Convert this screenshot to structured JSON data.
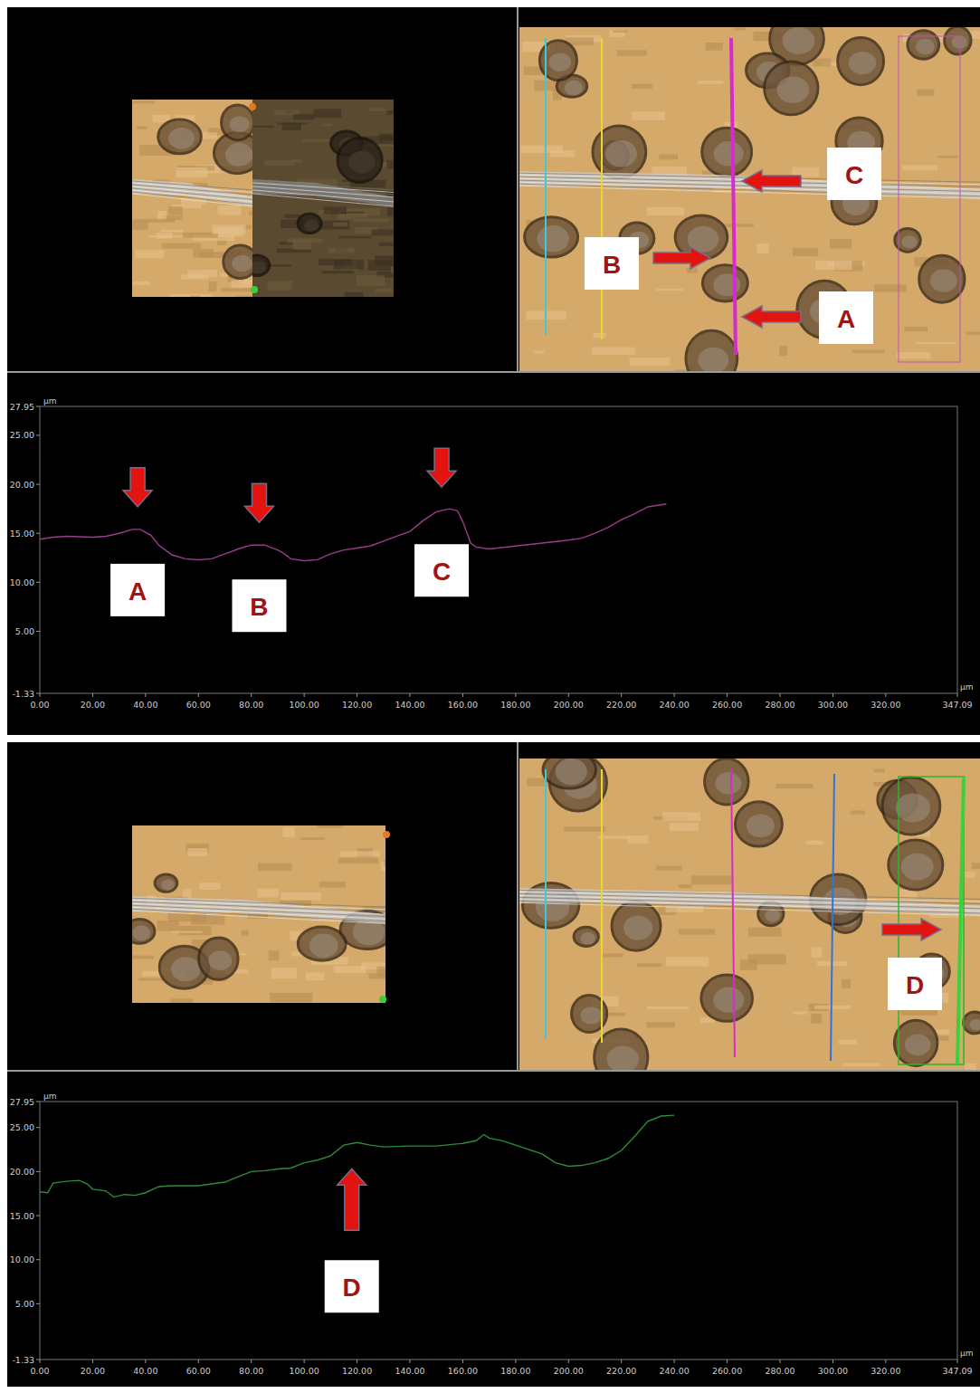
{
  "chart_data": [
    {
      "type": "line",
      "y_label": "µm",
      "x_label": "µm",
      "xlim": [
        0,
        347.09
      ],
      "ylim": [
        -1.33,
        27.95
      ],
      "xticks": [
        {
          "value": 0,
          "label": "0.00"
        },
        {
          "value": 20,
          "label": "20.00"
        },
        {
          "value": 40,
          "label": "40.00"
        },
        {
          "value": 60,
          "label": "60.00"
        },
        {
          "value": 80,
          "label": "80.00"
        },
        {
          "value": 100,
          "label": "100.00"
        },
        {
          "value": 120,
          "label": "120.00"
        },
        {
          "value": 140,
          "label": "140.00"
        },
        {
          "value": 160,
          "label": "160.00"
        },
        {
          "value": 180,
          "label": "180.00"
        },
        {
          "value": 200,
          "label": "200.00"
        },
        {
          "value": 220,
          "label": "220.00"
        },
        {
          "value": 240,
          "label": "240.00"
        },
        {
          "value": 260,
          "label": "260.00"
        },
        {
          "value": 280,
          "label": "280.00"
        },
        {
          "value": 300,
          "label": "300.00"
        },
        {
          "value": 320,
          "label": "320.00"
        },
        347.09
      ],
      "yticks": [
        -1.33,
        {
          "value": 5,
          "label": "5.00"
        },
        {
          "value": 10,
          "label": "10.00"
        },
        {
          "value": 15,
          "label": "15.00"
        },
        {
          "value": 20,
          "label": "20.00"
        },
        {
          "value": 25,
          "label": "25.00"
        },
        27.95
      ],
      "x": [
        0,
        5,
        10,
        20,
        25,
        30,
        35,
        38,
        42,
        45,
        50,
        55,
        60,
        65,
        70,
        75,
        80,
        85,
        90,
        92,
        95,
        100,
        105,
        110,
        115,
        120,
        125,
        130,
        135,
        140,
        145,
        150,
        155,
        158,
        160,
        163,
        165,
        170,
        180,
        190,
        200,
        205,
        210,
        215,
        220,
        225,
        230,
        237
      ],
      "series": [
        {
          "color": "#9a3c8c",
          "values": [
            14.4,
            14.6,
            14.7,
            14.6,
            14.7,
            15.0,
            15.4,
            15.4,
            14.8,
            13.8,
            12.8,
            12.4,
            12.3,
            12.4,
            12.9,
            13.4,
            13.8,
            13.8,
            13.3,
            13.0,
            12.4,
            12.2,
            12.3,
            12.9,
            13.3,
            13.5,
            13.7,
            14.2,
            14.7,
            15.2,
            16.3,
            17.2,
            17.5,
            17.3,
            16.2,
            14.0,
            13.6,
            13.4,
            13.7,
            14.0,
            14.3,
            14.5,
            15.0,
            15.6,
            16.4,
            17.0,
            17.7,
            18.0
          ]
        }
      ],
      "annotations": [
        {
          "text": "A",
          "x": 37,
          "y": 15.4
        },
        {
          "text": "B",
          "x": 83,
          "y": 13.8
        },
        {
          "text": "C",
          "x": 152,
          "y": 17.4
        }
      ]
    },
    {
      "type": "line",
      "y_label": "µm",
      "x_label": "µm",
      "xlim": [
        0,
        347.09
      ],
      "ylim": [
        -1.33,
        27.95
      ],
      "xticks": [
        {
          "value": 0,
          "label": "0.00"
        },
        {
          "value": 20,
          "label": "20.00"
        },
        {
          "value": 40,
          "label": "40.00"
        },
        {
          "value": 60,
          "label": "60.00"
        },
        {
          "value": 80,
          "label": "80.00"
        },
        {
          "value": 100,
          "label": "100.00"
        },
        {
          "value": 120,
          "label": "120.00"
        },
        {
          "value": 140,
          "label": "140.00"
        },
        {
          "value": 160,
          "label": "160.00"
        },
        {
          "value": 180,
          "label": "180.00"
        },
        {
          "value": 200,
          "label": "200.00"
        },
        {
          "value": 220,
          "label": "220.00"
        },
        {
          "value": 240,
          "label": "240.00"
        },
        {
          "value": 260,
          "label": "260.00"
        },
        {
          "value": 280,
          "label": "280.00"
        },
        {
          "value": 300,
          "label": "300.00"
        },
        {
          "value": 320,
          "label": "320.00"
        },
        347.09
      ],
      "yticks": [
        -1.33,
        {
          "value": 5,
          "label": "5.00"
        },
        {
          "value": 10,
          "label": "10.00"
        },
        {
          "value": 15,
          "label": "15.00"
        },
        {
          "value": 20,
          "label": "20.00"
        },
        {
          "value": 25,
          "label": "25.00"
        },
        27.95
      ],
      "x": [
        0,
        3,
        5,
        10,
        15,
        18,
        20,
        25,
        28,
        32,
        36,
        40,
        45,
        50,
        60,
        70,
        75,
        80,
        85,
        90,
        95,
        100,
        105,
        110,
        115,
        120,
        125,
        130,
        140,
        150,
        160,
        165,
        168,
        170,
        175,
        180,
        190,
        195,
        200,
        205,
        210,
        215,
        220,
        225,
        230,
        235,
        240
      ],
      "series": [
        {
          "color": "#2e8b3a",
          "values": [
            17.7,
            17.6,
            18.7,
            18.9,
            19.0,
            18.6,
            18.0,
            17.8,
            17.1,
            17.4,
            17.3,
            17.6,
            18.3,
            18.4,
            18.4,
            18.8,
            19.4,
            20.0,
            20.1,
            20.3,
            20.4,
            21.0,
            21.3,
            21.8,
            23.0,
            23.3,
            23.0,
            22.8,
            22.9,
            22.9,
            23.2,
            23.5,
            24.2,
            23.8,
            23.5,
            23.0,
            22.0,
            21.0,
            20.6,
            20.7,
            21.0,
            21.5,
            22.4,
            24.0,
            25.7,
            26.3,
            26.4
          ]
        }
      ],
      "annotations": [
        {
          "text": "D",
          "x": 118,
          "y": 23.3
        }
      ]
    }
  ],
  "images": [
    {
      "labels": [
        "C",
        "B",
        "A"
      ]
    },
    {
      "labels": [
        "D"
      ]
    }
  ]
}
